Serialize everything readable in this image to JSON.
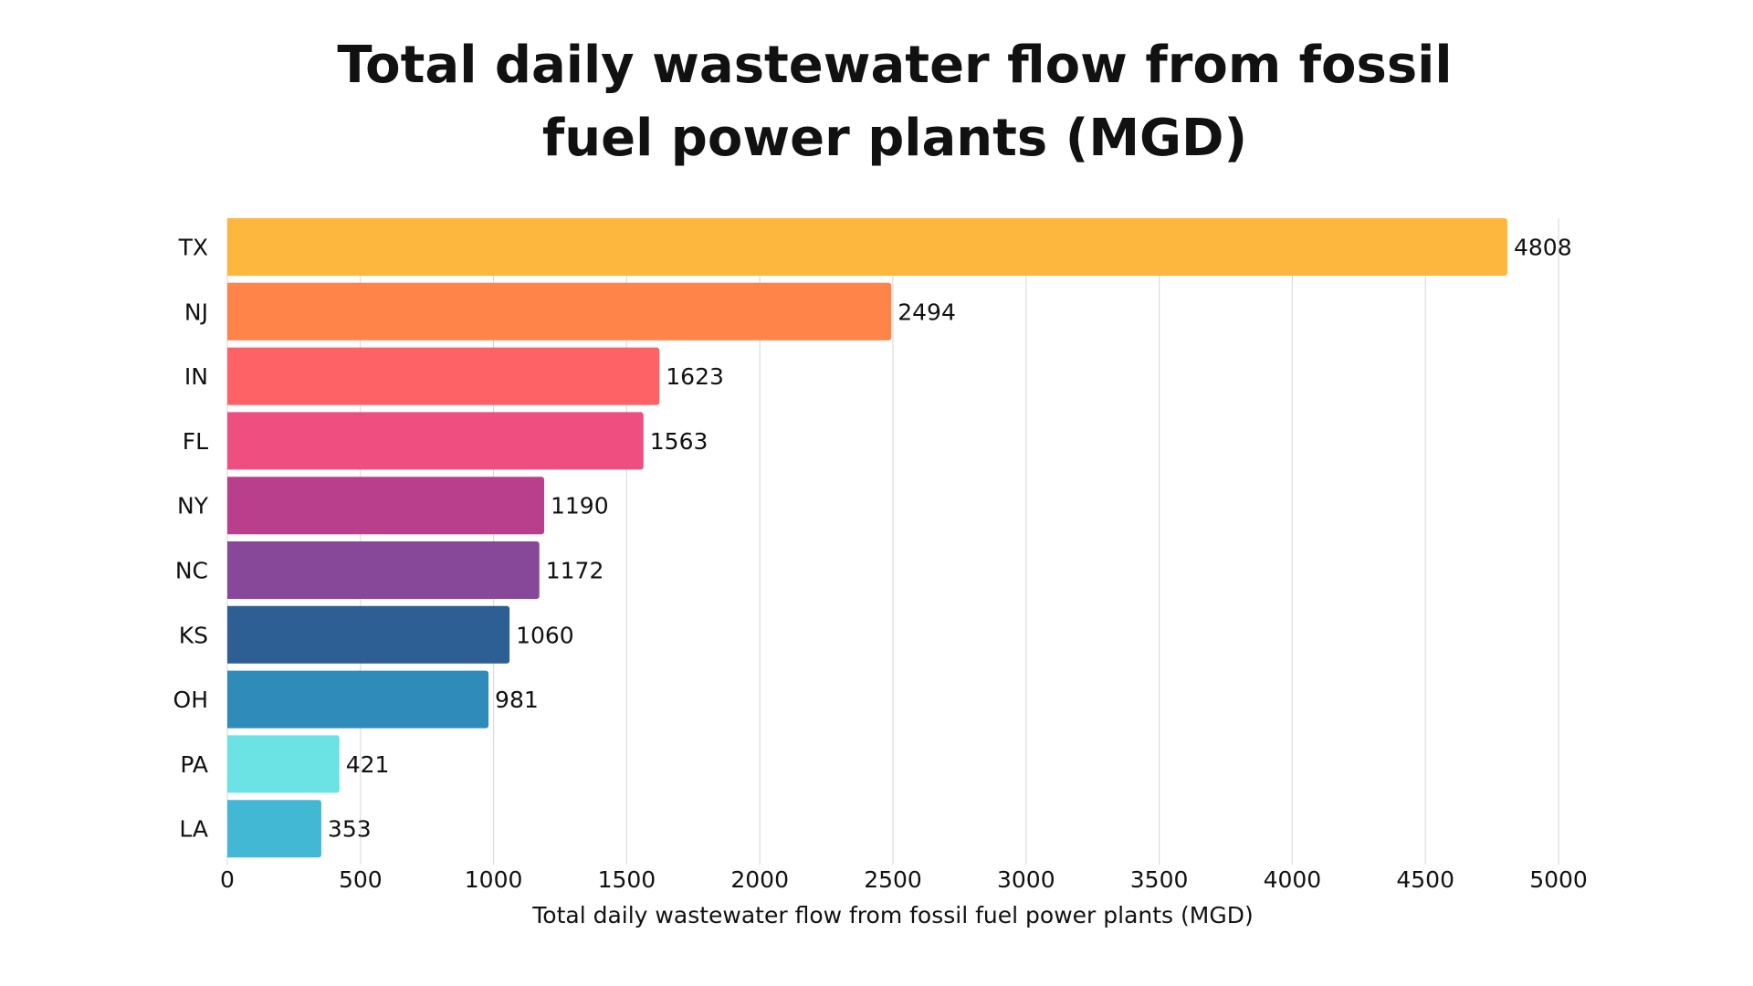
{
  "chart_data": {
    "type": "bar",
    "orientation": "horizontal",
    "title": "Total daily wastewater flow from fossil fuel power plants (MGD)",
    "title_lines": [
      "Total daily wastewater flow from fossil",
      "fuel power plants (MGD)"
    ],
    "xlabel": "Total daily wastewater flow from fossil fuel power plants (MGD)",
    "ylabel": "",
    "categories": [
      "TX",
      "NJ",
      "IN",
      "FL",
      "NY",
      "NC",
      "KS",
      "OH",
      "PA",
      "LA"
    ],
    "values": [
      4808,
      2494,
      1623,
      1563,
      1190,
      1172,
      1060,
      981,
      421,
      353
    ],
    "colors": [
      "#FDB73E",
      "#FF844A",
      "#FF6266",
      "#EE4F80",
      "#B93F8C",
      "#87489A",
      "#2E5F94",
      "#2E8BBA",
      "#6BE3E5",
      "#42B8D5"
    ],
    "xlim": [
      0,
      5000
    ],
    "xticks": [
      0,
      500,
      1000,
      1500,
      2000,
      2500,
      3000,
      3500,
      4000,
      4500,
      5000
    ],
    "grid": true,
    "legend": "none"
  }
}
